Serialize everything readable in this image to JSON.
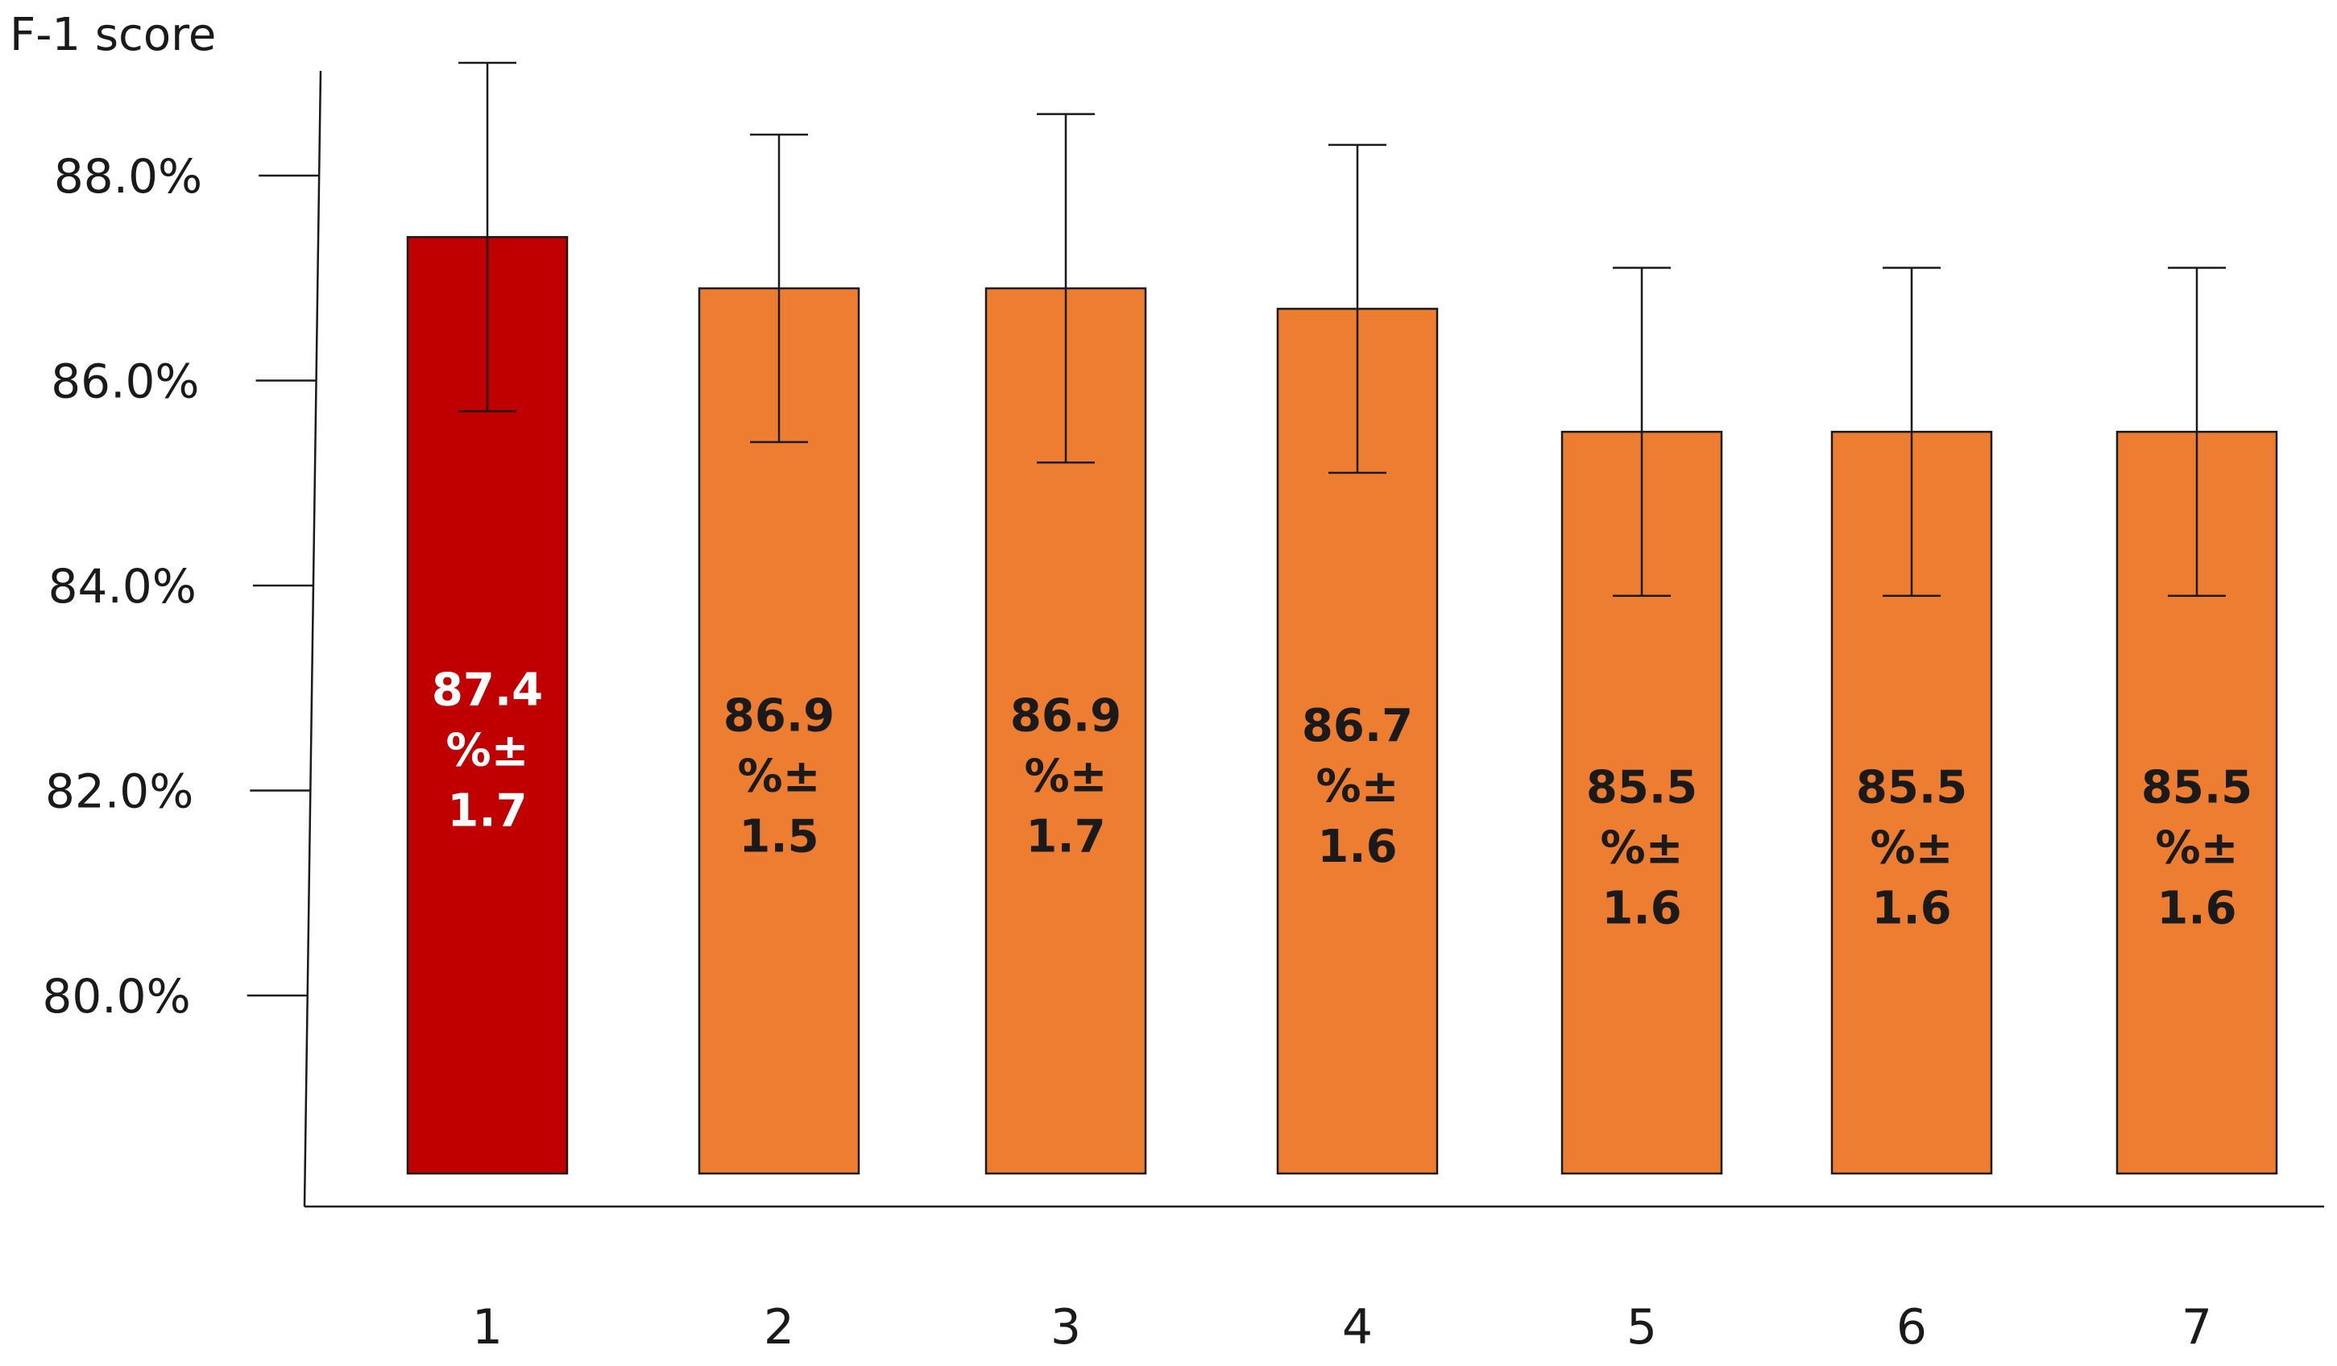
{
  "chart_data": {
    "type": "bar",
    "title": "",
    "xlabel": "",
    "ylabel": "F-1 score",
    "ylim": [
      78.2,
      89.0
    ],
    "yticks": [
      "80.0%",
      "82.0%",
      "84.0%",
      "86.0%",
      "88.0%"
    ],
    "ytick_values": [
      80.0,
      82.0,
      84.0,
      86.0,
      88.0
    ],
    "categories": [
      "1",
      "2",
      "3",
      "4",
      "5",
      "6",
      "7"
    ],
    "values": [
      87.4,
      86.9,
      86.9,
      86.7,
      85.5,
      85.5,
      85.5
    ],
    "errors": [
      1.7,
      1.5,
      1.7,
      1.6,
      1.6,
      1.6,
      1.6
    ],
    "data_labels": [
      [
        "87.4",
        "%±",
        "1.7"
      ],
      [
        "86.9",
        "%±",
        "1.5"
      ],
      [
        "86.9",
        "%±",
        "1.7"
      ],
      [
        "86.7",
        "%±",
        "1.6"
      ],
      [
        "85.5",
        "%±",
        "1.6"
      ],
      [
        "85.5",
        "%±",
        "1.6"
      ],
      [
        "85.5",
        "%±",
        "1.6"
      ]
    ],
    "bar_colors": [
      "#c00000",
      "#ed7d31",
      "#ed7d31",
      "#ed7d31",
      "#ed7d31",
      "#ed7d31",
      "#ed7d31"
    ],
    "label_colors": [
      "#ffffff",
      "#1a1a1a",
      "#1a1a1a",
      "#1a1a1a",
      "#1a1a1a",
      "#1a1a1a",
      "#1a1a1a"
    ],
    "highlight_index": 0,
    "grid": false,
    "legend": "none"
  }
}
